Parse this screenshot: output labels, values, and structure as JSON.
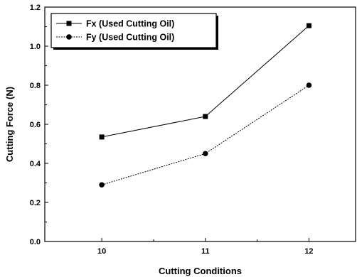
{
  "chart_data": {
    "type": "line",
    "categories": [
      "10",
      "11",
      "12"
    ],
    "x": [
      10,
      11,
      12
    ],
    "series": [
      {
        "name": "Fx (Used Cutting Oil)",
        "values": [
          0.535,
          0.64,
          1.105
        ],
        "marker": "square",
        "line_style": "solid",
        "color": "#000000"
      },
      {
        "name": "Fy (Used Cutting Oil)",
        "values": [
          0.29,
          0.45,
          0.8
        ],
        "marker": "circle",
        "line_style": "dashed",
        "color": "#000000"
      }
    ],
    "xlabel": "Cutting Conditions",
    "ylabel": "Cutting Force (N)",
    "ylim": [
      0.0,
      1.2
    ],
    "yticks": [
      "0.0",
      "0.2",
      "0.4",
      "0.6",
      "0.8",
      "1.0",
      "1.2"
    ],
    "grid": false,
    "legend_position": "top-left"
  }
}
